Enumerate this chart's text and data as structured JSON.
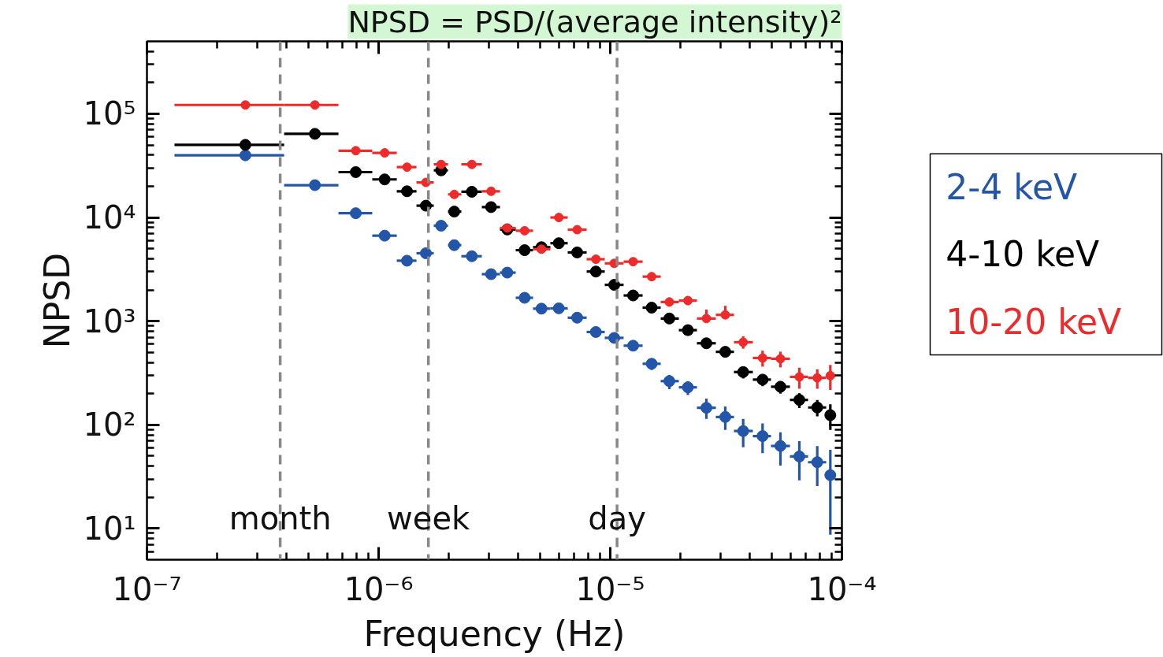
{
  "chart_data": {
    "type": "scatter",
    "log": "xy",
    "marker": "circle",
    "legend": "right",
    "xlabel": "Frequency (Hz)",
    "ylabel": "NPSD",
    "annotations": [
      "NPSD = PSD/(average intensity)²"
    ],
    "xlim": [
      1e-07,
      0.0001
    ],
    "ylim": [
      5,
      500000
    ],
    "xticks": [
      {
        "value": 1e-07,
        "label": "10⁻⁷"
      },
      {
        "value": 1e-06,
        "label": "10⁻⁶"
      },
      {
        "value": 1e-05,
        "label": "10⁻⁵"
      },
      {
        "value": 0.0001,
        "label": "10⁻⁴"
      }
    ],
    "yticks": [
      {
        "value": 10,
        "label": "10¹"
      },
      {
        "value": 100,
        "label": "10²"
      },
      {
        "value": 1000,
        "label": "10³"
      },
      {
        "value": 10000,
        "label": "10⁴"
      },
      {
        "value": 100000,
        "label": "10⁵"
      }
    ],
    "ref_lines": [
      {
        "axis": "x",
        "value": 3.76e-07,
        "label": "month",
        "color": "#888888",
        "line_style": "dashed"
      },
      {
        "axis": "x",
        "value": 1.64e-06,
        "label": "week",
        "color": "#888888",
        "line_style": "dashed"
      },
      {
        "axis": "x",
        "value": 1.07e-05,
        "label": "day",
        "color": "#888888",
        "line_style": "dashed"
      }
    ],
    "x": [
      2.66e-07,
      5.31e-07,
      7.97e-07,
      1.062e-06,
      1.326e-06,
      1.6e-06,
      1.861e-06,
      2.121e-06,
      2.526e-06,
      3.058e-06,
      3.593e-06,
      4.269e-06,
      5.048e-06,
      5.997e-06,
      7.196e-06,
      8.667e-06,
      1.04e-05,
      1.255e-05,
      1.509e-05,
      1.799e-05,
      2.163e-05,
      2.6e-05,
      3.137e-05,
      3.748e-05,
      4.545e-05,
      5.428e-05,
      6.551e-05,
      7.826e-05,
      8.913e-05
    ],
    "series": [
      {
        "name": "2-4 keV",
        "color": "#2355a8",
        "values": [
          39800,
          20500,
          11000,
          6680,
          3830,
          4520,
          8330,
          5410,
          4230,
          2840,
          2940,
          1680,
          1320,
          1330,
          1080,
          786,
          690,
          580,
          388,
          264,
          230,
          146,
          119,
          87.1,
          77.9,
          62.5,
          49.5,
          43.6,
          32.7
        ],
        "errors": [
          null,
          null,
          null,
          null,
          null,
          null,
          null,
          null,
          null,
          null,
          null,
          null,
          null,
          null,
          null,
          null,
          null,
          null,
          [
            338,
            434
          ],
          [
            221,
            303
          ],
          [
            194,
            264
          ],
          [
            114,
            179
          ],
          [
            89.4,
            150
          ],
          [
            60.7,
            114
          ],
          [
            53.4,
            103
          ],
          [
            40.5,
            84.7
          ],
          [
            29.1,
            69.7
          ],
          [
            25.7,
            62.5
          ],
          [
            8.73,
            57.5
          ]
        ],
        "xerrors": [
          [
            1.315e-07,
            3.91e-07
          ],
          [
            3.91e-07,
            6.71e-07
          ],
          [
            6.71e-07,
            9.39e-07
          ],
          [
            9.39e-07,
            1.198e-06
          ],
          [
            1.198e-06,
            1.457e-06
          ],
          [
            1.457e-06,
            1.73e-06
          ],
          [
            1.73e-06,
            1.993e-06
          ],
          [
            1.993e-06,
            2.276e-06
          ],
          [
            2.276e-06,
            2.79e-06
          ],
          [
            2.79e-06,
            3.341e-06
          ],
          [
            3.341e-06,
            3.907e-06
          ],
          [
            3.907e-06,
            4.642e-06
          ],
          [
            4.642e-06,
            5.514e-06
          ],
          [
            5.514e-06,
            6.551e-06
          ],
          [
            6.551e-06,
            7.907e-06
          ],
          [
            7.907e-06,
            9.467e-06
          ],
          [
            9.467e-06,
            1.142e-05
          ],
          [
            1.142e-05,
            1.379e-05
          ],
          [
            1.379e-05,
            1.651e-05
          ],
          [
            1.651e-05,
            1.977e-05
          ],
          [
            1.977e-05,
            2.367e-05
          ],
          [
            2.367e-05,
            2.856e-05
          ],
          [
            2.856e-05,
            3.42e-05
          ],
          [
            3.42e-05,
            4.126e-05
          ],
          [
            4.126e-05,
            4.941e-05
          ],
          [
            4.941e-05,
            5.965e-05
          ],
          [
            5.965e-05,
            7.141e-05
          ],
          [
            7.141e-05,
            8.551e-05
          ],
          [
            8.551e-05,
            9.393e-05
          ]
        ]
      },
      {
        "name": "4-10 keV",
        "color": "#000000",
        "values": [
          50200,
          64100,
          27400,
          23300,
          17900,
          13000,
          28500,
          11400,
          17700,
          12600,
          7660,
          4840,
          5170,
          5650,
          4600,
          3010,
          2240,
          1770,
          1350,
          1060,
          819,
          612,
          506,
          323,
          273,
          233,
          174,
          147,
          124
        ],
        "errors": [
          null,
          null,
          null,
          null,
          null,
          null,
          null,
          null,
          null,
          null,
          null,
          null,
          null,
          null,
          null,
          null,
          null,
          null,
          null,
          null,
          null,
          null,
          null,
          [
            280,
            360
          ],
          [
            236,
            303
          ],
          [
            200,
            264
          ],
          [
            145,
            202
          ],
          [
            121,
            174
          ],
          [
            89.4,
            158
          ]
        ],
        "xerrors": [
          [
            1.315e-07,
            3.91e-07
          ],
          [
            3.91e-07,
            6.71e-07
          ],
          [
            6.71e-07,
            9.39e-07
          ],
          [
            9.39e-07,
            1.198e-06
          ],
          [
            1.198e-06,
            1.457e-06
          ],
          [
            1.457e-06,
            1.73e-06
          ],
          [
            1.73e-06,
            1.993e-06
          ],
          [
            1.993e-06,
            2.276e-06
          ],
          [
            2.276e-06,
            2.79e-06
          ],
          [
            2.79e-06,
            3.341e-06
          ],
          [
            3.341e-06,
            3.907e-06
          ],
          [
            3.907e-06,
            4.642e-06
          ],
          [
            4.642e-06,
            5.514e-06
          ],
          [
            5.514e-06,
            6.551e-06
          ],
          [
            6.551e-06,
            7.907e-06
          ],
          [
            7.907e-06,
            9.467e-06
          ],
          [
            9.467e-06,
            1.142e-05
          ],
          [
            1.142e-05,
            1.379e-05
          ],
          [
            1.379e-05,
            1.651e-05
          ],
          [
            1.651e-05,
            1.977e-05
          ],
          [
            1.977e-05,
            2.367e-05
          ],
          [
            2.367e-05,
            2.856e-05
          ],
          [
            2.856e-05,
            3.42e-05
          ],
          [
            3.42e-05,
            4.126e-05
          ],
          [
            4.126e-05,
            4.941e-05
          ],
          [
            4.941e-05,
            5.965e-05
          ],
          [
            5.965e-05,
            7.141e-05
          ],
          [
            7.141e-05,
            8.551e-05
          ],
          [
            8.551e-05,
            9.393e-05
          ]
        ]
      },
      {
        "name": "10-20 keV",
        "color": "#ee2a2a",
        "values": [
          121700,
          121700,
          44100,
          42000,
          30600,
          21800,
          32500,
          16700,
          32500,
          17900,
          7920,
          7450,
          4950,
          10000,
          7630,
          3960,
          3610,
          3750,
          2690,
          1530,
          1580,
          1060,
          1150,
          626,
          441,
          434,
          290,
          284,
          298
        ],
        "errors": [
          null,
          null,
          null,
          null,
          null,
          null,
          null,
          null,
          null,
          null,
          null,
          null,
          null,
          null,
          null,
          null,
          null,
          null,
          null,
          [
            1383,
            1688
          ],
          [
            1430,
            1745
          ],
          [
            992,
            1294
          ],
          [
            1078,
            1406
          ],
          [
            542,
            715
          ],
          [
            364,
            519
          ],
          [
            358,
            508
          ],
          [
            223,
            356
          ],
          [
            223,
            344
          ],
          [
            217,
            378
          ]
        ],
        "xerrors": [
          [
            1.315e-07,
            3.91e-07
          ],
          [
            3.91e-07,
            6.71e-07
          ],
          [
            6.71e-07,
            9.39e-07
          ],
          [
            9.39e-07,
            1.198e-06
          ],
          [
            1.198e-06,
            1.457e-06
          ],
          [
            1.457e-06,
            1.73e-06
          ],
          [
            1.73e-06,
            1.993e-06
          ],
          [
            1.993e-06,
            2.276e-06
          ],
          [
            2.276e-06,
            2.79e-06
          ],
          [
            2.79e-06,
            3.341e-06
          ],
          [
            3.341e-06,
            3.907e-06
          ],
          [
            3.907e-06,
            4.642e-06
          ],
          [
            4.642e-06,
            5.514e-06
          ],
          [
            5.514e-06,
            6.551e-06
          ],
          [
            6.551e-06,
            7.907e-06
          ],
          [
            7.907e-06,
            9.467e-06
          ],
          [
            9.467e-06,
            1.142e-05
          ],
          [
            1.142e-05,
            1.379e-05
          ],
          [
            1.379e-05,
            1.651e-05
          ],
          [
            1.651e-05,
            1.977e-05
          ],
          [
            1.977e-05,
            2.367e-05
          ],
          [
            2.367e-05,
            2.856e-05
          ],
          [
            2.856e-05,
            3.42e-05
          ],
          [
            3.42e-05,
            4.126e-05
          ],
          [
            4.126e-05,
            4.941e-05
          ],
          [
            4.941e-05,
            5.965e-05
          ],
          [
            5.965e-05,
            7.141e-05
          ],
          [
            7.141e-05,
            8.551e-05
          ],
          [
            8.551e-05,
            9.393e-05
          ]
        ]
      }
    ]
  }
}
